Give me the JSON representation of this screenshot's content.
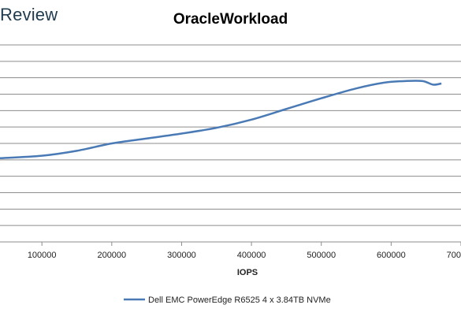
{
  "watermark": {
    "text": "Review"
  },
  "chart_data": {
    "type": "line",
    "title": "OracleWorkload",
    "xlabel": "IOPS",
    "ylabel": "",
    "x_ticks": [
      100000,
      200000,
      300000,
      400000,
      500000,
      600000,
      700000
    ],
    "x_tick_labels": [
      "100000",
      "200000",
      "300000",
      "400000",
      "500000",
      "600000",
      "700000"
    ],
    "xlim": [
      40000,
      700000
    ],
    "grid": true,
    "legend_position": "bottom",
    "series": [
      {
        "name": "Dell EMC PowerEdge R6525 4 x 3.84TB NVMe",
        "color": "#4a7ab5",
        "x": [
          40000,
          100000,
          150000,
          200000,
          250000,
          300000,
          350000,
          400000,
          450000,
          500000,
          550000,
          590000,
          620000,
          645000,
          660000,
          672000
        ],
        "y": [
          5.1,
          5.25,
          5.55,
          6.0,
          6.3,
          6.6,
          6.95,
          7.45,
          8.1,
          8.75,
          9.35,
          9.7,
          9.8,
          9.8,
          9.58,
          9.65
        ]
      }
    ],
    "ylim": [
      0,
      12
    ]
  }
}
